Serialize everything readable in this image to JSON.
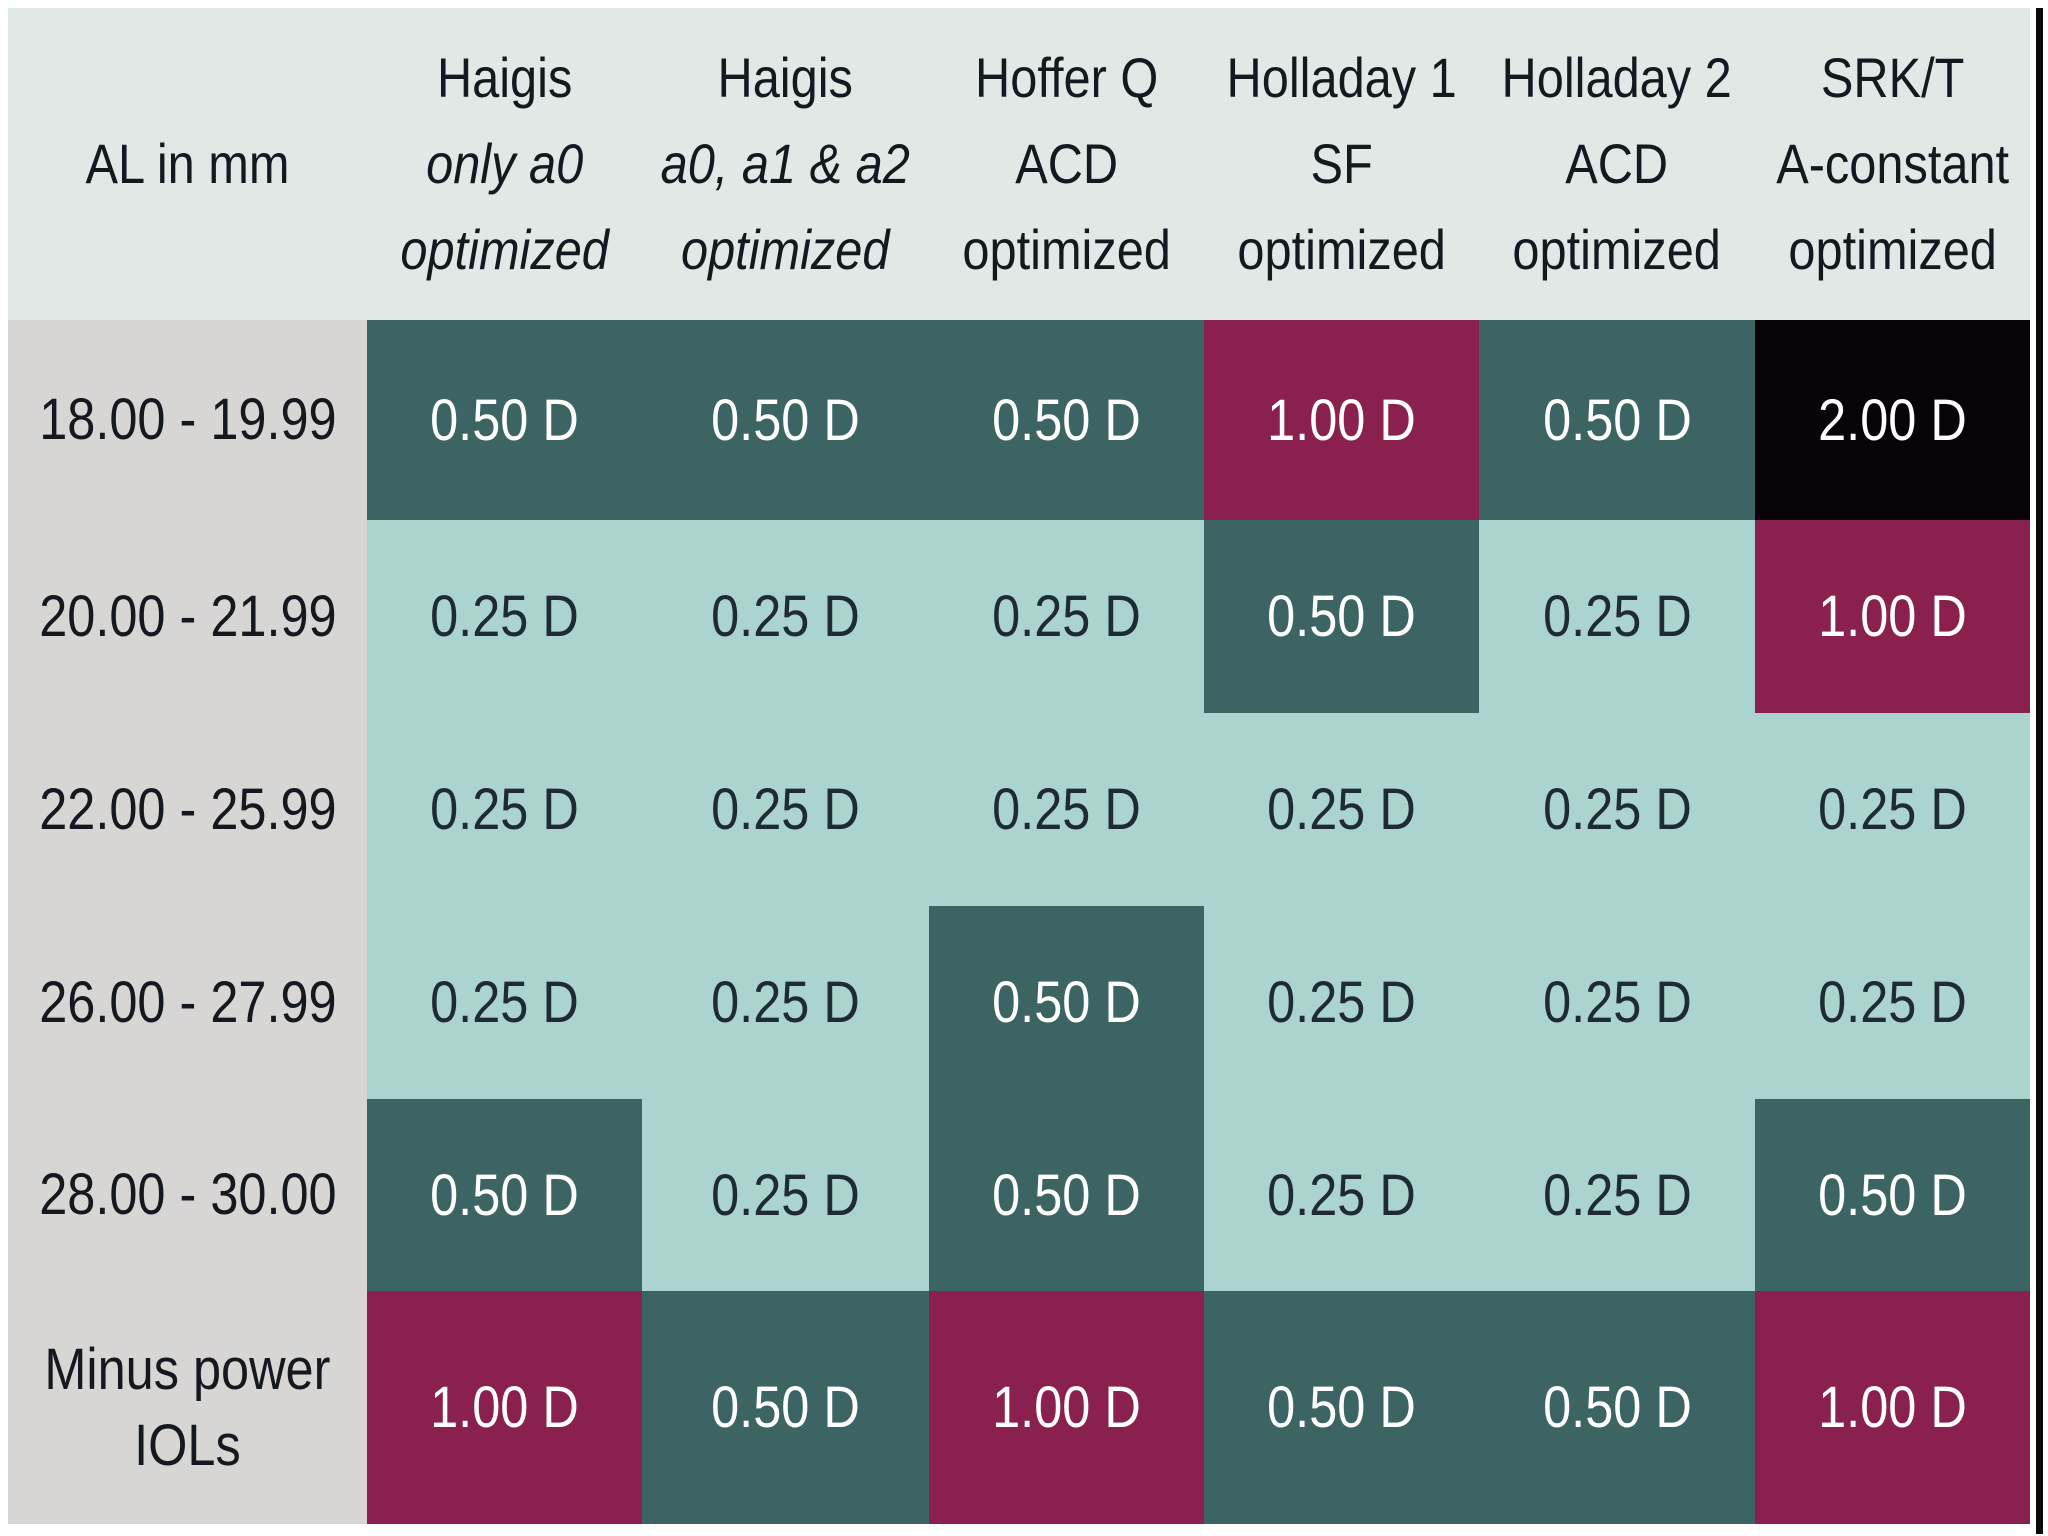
{
  "colors": {
    "page_bg": "#ffffff",
    "edge_line": "#0a0a0a",
    "header_bg": "#e0e9e5",
    "header_text": "#16181f",
    "label_bg": "#d7d6d4",
    "label_text": "#16181f",
    "levels": {
      "low": {
        "bg": "#abd4ce",
        "text": "#1e2b30"
      },
      "mid": {
        "bg": "#3b6462",
        "text": "#ffffff"
      },
      "high": {
        "bg": "#8a204d",
        "text": "#ffffff"
      },
      "max": {
        "bg": "#070309",
        "text": "#ffffff"
      }
    }
  },
  "table": {
    "columns": [
      {
        "title": "AL in mm",
        "sub1": "",
        "sub2": "",
        "italic_sub": false
      },
      {
        "title": "Haigis",
        "sub1": "only a0",
        "sub2": "optimized",
        "italic_sub": true
      },
      {
        "title": "Haigis",
        "sub1": "a0, a1 & a2",
        "sub2": "optimized",
        "italic_sub": true
      },
      {
        "title": "Hoffer Q",
        "sub1": "ACD",
        "sub2": "optimized",
        "italic_sub": false
      },
      {
        "title": "Holladay 1",
        "sub1": "SF",
        "sub2": "optimized",
        "italic_sub": false
      },
      {
        "title": "Holladay 2",
        "sub1": "ACD",
        "sub2": "optimized",
        "italic_sub": false
      },
      {
        "title": "SRK/T",
        "sub1": "A-constant",
        "sub2": "optimized",
        "italic_sub": false
      }
    ],
    "rows": [
      {
        "label": "18.00 - 19.99",
        "cells": [
          {
            "value": "0.50 D",
            "level": "mid"
          },
          {
            "value": "0.50 D",
            "level": "mid"
          },
          {
            "value": "0.50 D",
            "level": "mid"
          },
          {
            "value": "1.00 D",
            "level": "high"
          },
          {
            "value": "0.50 D",
            "level": "mid"
          },
          {
            "value": "2.00 D",
            "level": "max"
          }
        ]
      },
      {
        "label": "20.00 - 21.99",
        "cells": [
          {
            "value": "0.25 D",
            "level": "low"
          },
          {
            "value": "0.25 D",
            "level": "low"
          },
          {
            "value": "0.25 D",
            "level": "low"
          },
          {
            "value": "0.50 D",
            "level": "mid"
          },
          {
            "value": "0.25 D",
            "level": "low"
          },
          {
            "value": "1.00 D",
            "level": "high"
          }
        ]
      },
      {
        "label": "22.00 - 25.99",
        "cells": [
          {
            "value": "0.25 D",
            "level": "low"
          },
          {
            "value": "0.25 D",
            "level": "low"
          },
          {
            "value": "0.25 D",
            "level": "low"
          },
          {
            "value": "0.25 D",
            "level": "low"
          },
          {
            "value": "0.25 D",
            "level": "low"
          },
          {
            "value": "0.25 D",
            "level": "low"
          }
        ]
      },
      {
        "label": "26.00 - 27.99",
        "cells": [
          {
            "value": "0.25 D",
            "level": "low"
          },
          {
            "value": "0.25 D",
            "level": "low"
          },
          {
            "value": "0.50 D",
            "level": "mid"
          },
          {
            "value": "0.25 D",
            "level": "low"
          },
          {
            "value": "0.25 D",
            "level": "low"
          },
          {
            "value": "0.25 D",
            "level": "low"
          }
        ]
      },
      {
        "label": "28.00 - 30.00",
        "cells": [
          {
            "value": "0.50 D",
            "level": "mid"
          },
          {
            "value": "0.25 D",
            "level": "low"
          },
          {
            "value": "0.50 D",
            "level": "mid"
          },
          {
            "value": "0.25 D",
            "level": "low"
          },
          {
            "value": "0.25 D",
            "level": "low"
          },
          {
            "value": "0.50 D",
            "level": "mid"
          }
        ]
      },
      {
        "label": "Minus power\nIOLs",
        "cells": [
          {
            "value": "1.00 D",
            "level": "high"
          },
          {
            "value": "0.50 D",
            "level": "mid"
          },
          {
            "value": "1.00 D",
            "level": "high"
          },
          {
            "value": "0.50 D",
            "level": "mid"
          },
          {
            "value": "0.50 D",
            "level": "mid"
          },
          {
            "value": "1.00 D",
            "level": "high"
          }
        ]
      }
    ]
  },
  "chart_data": {
    "type": "heatmap",
    "title": "",
    "ylabel": "AL in mm",
    "x_categories": [
      "Haigis only a0 optimized",
      "Haigis a0, a1 & a2 optimized",
      "Hoffer Q ACD optimized",
      "Holladay 1 SF optimized",
      "Holladay 2 ACD optimized",
      "SRK/T A-constant optimized"
    ],
    "y_categories": [
      "18.00 - 19.99",
      "20.00 - 21.99",
      "22.00 - 25.99",
      "26.00 - 27.99",
      "28.00 - 30.00",
      "Minus power IOLs"
    ],
    "values_diopters": [
      [
        0.5,
        0.5,
        0.5,
        1.0,
        0.5,
        2.0
      ],
      [
        0.25,
        0.25,
        0.25,
        0.5,
        0.25,
        1.0
      ],
      [
        0.25,
        0.25,
        0.25,
        0.25,
        0.25,
        0.25
      ],
      [
        0.25,
        0.25,
        0.5,
        0.25,
        0.25,
        0.25
      ],
      [
        0.5,
        0.25,
        0.5,
        0.25,
        0.25,
        0.5
      ],
      [
        1.0,
        0.5,
        1.0,
        0.5,
        0.5,
        1.0
      ]
    ],
    "cell_label_format": "{value} D",
    "color_scale": {
      "0.25": "#abd4ce",
      "0.50": "#3b6462",
      "1.00": "#8a204d",
      "2.00": "#070309"
    },
    "legend_position": "none",
    "grid": false
  }
}
